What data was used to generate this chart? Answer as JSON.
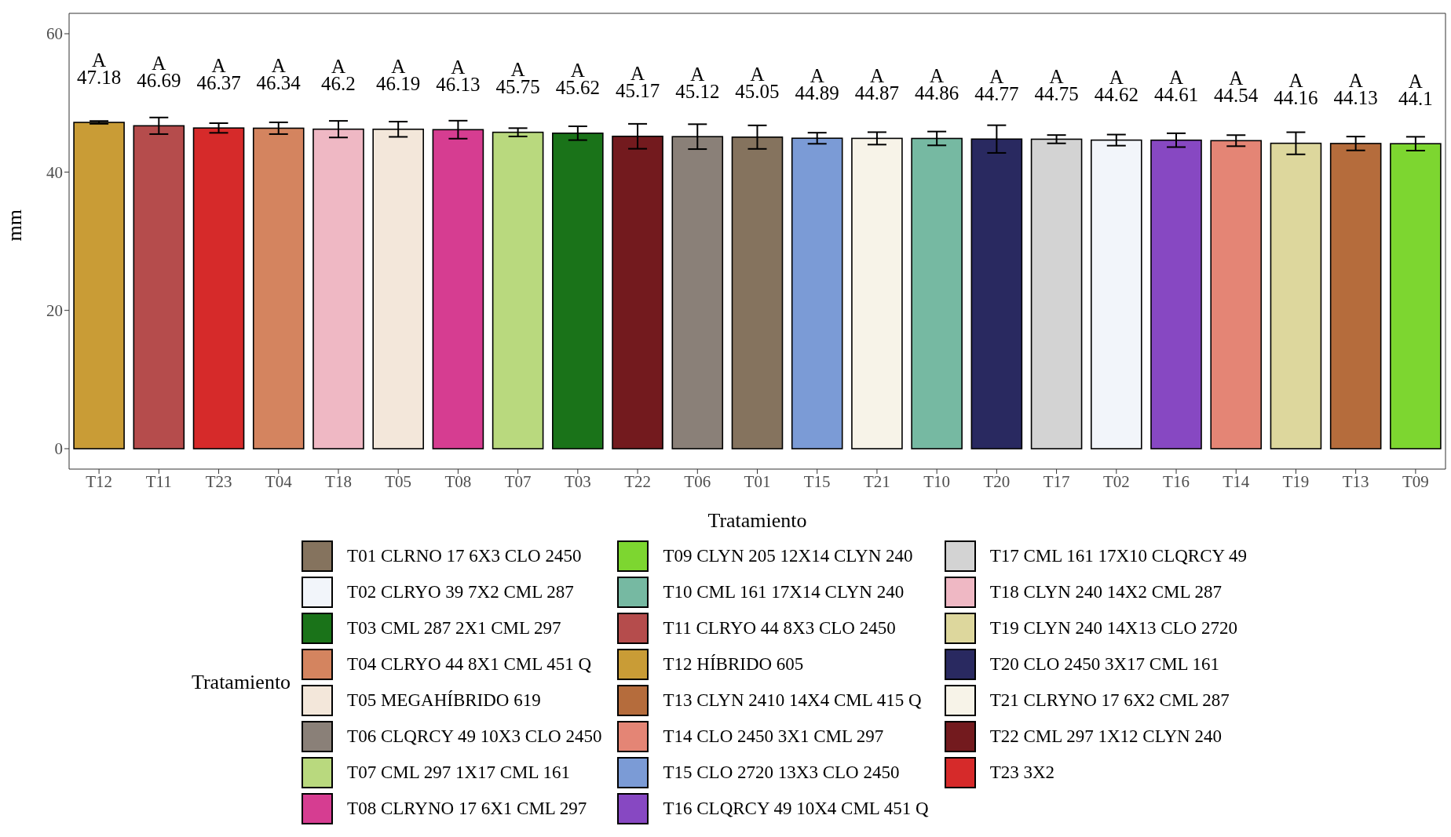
{
  "chart_data": {
    "type": "bar",
    "xlabel": "Tratamiento",
    "ylabel": "mm",
    "legend_title": "Tratamiento",
    "legend": "bottom",
    "stacked": true,
    "data_labels": true,
    "categories": [
      "T12",
      "T11",
      "T23",
      "T04",
      "T18",
      "T05",
      "T08",
      "T07",
      "T03",
      "T22",
      "T06",
      "T01",
      "T15",
      "T21",
      "T10",
      "T20",
      "T17",
      "T02",
      "T16",
      "T14",
      "T19",
      "T13",
      "T09"
    ],
    "ylim": [
      -2.95,
      62.95
    ],
    "yticks": [
      0,
      20,
      40,
      60
    ],
    "annotations": [
      {
        "text": "A",
        "x": "T12",
        "y": 47.18
      },
      {
        "text": "A",
        "x": "T11",
        "y": 46.69
      },
      {
        "text": "A",
        "x": "T23",
        "y": 46.37
      },
      {
        "text": "A",
        "x": "T04",
        "y": 46.34
      },
      {
        "text": "A",
        "x": "T18",
        "y": 46.2
      },
      {
        "text": "A",
        "x": "T05",
        "y": 46.19
      },
      {
        "text": "A",
        "x": "T08",
        "y": 46.13
      },
      {
        "text": "A",
        "x": "T07",
        "y": 45.75
      },
      {
        "text": "A",
        "x": "T03",
        "y": 45.62
      },
      {
        "text": "A",
        "x": "T22",
        "y": 45.17
      },
      {
        "text": "A",
        "x": "T06",
        "y": 45.12
      },
      {
        "text": "A",
        "x": "T01",
        "y": 45.05
      },
      {
        "text": "A",
        "x": "T15",
        "y": 44.89
      },
      {
        "text": "A",
        "x": "T21",
        "y": 44.87
      },
      {
        "text": "A",
        "x": "T10",
        "y": 44.86
      },
      {
        "text": "A",
        "x": "T20",
        "y": 44.77
      },
      {
        "text": "A",
        "x": "T17",
        "y": 44.75
      },
      {
        "text": "A",
        "x": "T02",
        "y": 44.62
      },
      {
        "text": "A",
        "x": "T16",
        "y": 44.61
      },
      {
        "text": "A",
        "x": "T14",
        "y": 44.54
      },
      {
        "text": "A",
        "x": "T19",
        "y": 44.16
      },
      {
        "text": "A",
        "x": "T13",
        "y": 44.13
      },
      {
        "text": "A",
        "x": "T09",
        "y": 44.1
      }
    ],
    "series": [
      {
        "name": "T01 CLRNO 17 6X3 CLO 2450",
        "color": "#85735e",
        "values": [
          null,
          null,
          null,
          null,
          null,
          null,
          null,
          null,
          null,
          null,
          null,
          45.05,
          null,
          null,
          null,
          null,
          null,
          null,
          null,
          null,
          null,
          null,
          null
        ],
        "errors": [
          null,
          null,
          null,
          null,
          null,
          null,
          null,
          null,
          null,
          null,
          null,
          1.7,
          null,
          null,
          null,
          null,
          null,
          null,
          null,
          null,
          null,
          null,
          null
        ]
      },
      {
        "name": "T02 CLRYO 39 7X2 CML 287",
        "color": "#f2f5fa",
        "values": [
          null,
          null,
          null,
          null,
          null,
          null,
          null,
          null,
          null,
          null,
          null,
          null,
          null,
          null,
          null,
          null,
          null,
          44.62,
          null,
          null,
          null,
          null,
          null
        ],
        "errors": [
          null,
          null,
          null,
          null,
          null,
          null,
          null,
          null,
          null,
          null,
          null,
          null,
          null,
          null,
          null,
          null,
          null,
          0.8,
          null,
          null,
          null,
          null,
          null
        ]
      },
      {
        "name": "T03 CML 287 2X1 CML 297",
        "color": "#1a7319",
        "values": [
          null,
          null,
          null,
          null,
          null,
          null,
          null,
          null,
          45.62,
          null,
          null,
          null,
          null,
          null,
          null,
          null,
          null,
          null,
          null,
          null,
          null,
          null,
          null
        ],
        "errors": [
          null,
          null,
          null,
          null,
          null,
          null,
          null,
          null,
          1.0,
          null,
          null,
          null,
          null,
          null,
          null,
          null,
          null,
          null,
          null,
          null,
          null,
          null,
          null
        ]
      },
      {
        "name": "T04 CLRYO 44 8X1 CML 451 Q",
        "color": "#d4845f",
        "values": [
          null,
          null,
          null,
          46.34,
          null,
          null,
          null,
          null,
          null,
          null,
          null,
          null,
          null,
          null,
          null,
          null,
          null,
          null,
          null,
          null,
          null,
          null,
          null
        ],
        "errors": [
          null,
          null,
          null,
          0.85,
          null,
          null,
          null,
          null,
          null,
          null,
          null,
          null,
          null,
          null,
          null,
          null,
          null,
          null,
          null,
          null,
          null,
          null,
          null
        ]
      },
      {
        "name": "T05 MEGAHÍBRIDO 619",
        "color": "#f3e7da",
        "values": [
          null,
          null,
          null,
          null,
          null,
          46.19,
          null,
          null,
          null,
          null,
          null,
          null,
          null,
          null,
          null,
          null,
          null,
          null,
          null,
          null,
          null,
          null,
          null
        ],
        "errors": [
          null,
          null,
          null,
          null,
          null,
          1.1,
          null,
          null,
          null,
          null,
          null,
          null,
          null,
          null,
          null,
          null,
          null,
          null,
          null,
          null,
          null,
          null,
          null
        ]
      },
      {
        "name": "T06 CLQRCY 49 10X3 CLO 2450",
        "color": "#8a8078",
        "values": [
          null,
          null,
          null,
          null,
          null,
          null,
          null,
          null,
          null,
          null,
          45.12,
          null,
          null,
          null,
          null,
          null,
          null,
          null,
          null,
          null,
          null,
          null,
          null
        ],
        "errors": [
          null,
          null,
          null,
          null,
          null,
          null,
          null,
          null,
          null,
          null,
          1.8,
          null,
          null,
          null,
          null,
          null,
          null,
          null,
          null,
          null,
          null,
          null,
          null
        ]
      },
      {
        "name": "T07 CML 297 1X17 CML 161",
        "color": "#b9d97e",
        "values": [
          null,
          null,
          null,
          null,
          null,
          null,
          null,
          45.75,
          null,
          null,
          null,
          null,
          null,
          null,
          null,
          null,
          null,
          null,
          null,
          null,
          null,
          null,
          null
        ],
        "errors": [
          null,
          null,
          null,
          null,
          null,
          null,
          null,
          0.6,
          null,
          null,
          null,
          null,
          null,
          null,
          null,
          null,
          null,
          null,
          null,
          null,
          null,
          null,
          null
        ]
      },
      {
        "name": "T08 CLRYNO 17 6X1 CML 297",
        "color": "#d63d91",
        "values": [
          null,
          null,
          null,
          null,
          null,
          null,
          46.13,
          null,
          null,
          null,
          null,
          null,
          null,
          null,
          null,
          null,
          null,
          null,
          null,
          null,
          null,
          null,
          null
        ],
        "errors": [
          null,
          null,
          null,
          null,
          null,
          null,
          1.3,
          null,
          null,
          null,
          null,
          null,
          null,
          null,
          null,
          null,
          null,
          null,
          null,
          null,
          null,
          null,
          null
        ]
      },
      {
        "name": "T09 CLYN 205 12X14 CLYN 240",
        "color": "#7dd630",
        "values": [
          null,
          null,
          null,
          null,
          null,
          null,
          null,
          null,
          null,
          null,
          null,
          null,
          null,
          null,
          null,
          null,
          null,
          null,
          null,
          null,
          null,
          null,
          44.1
        ],
        "errors": [
          null,
          null,
          null,
          null,
          null,
          null,
          null,
          null,
          null,
          null,
          null,
          null,
          null,
          null,
          null,
          null,
          null,
          null,
          null,
          null,
          null,
          null,
          1.0
        ]
      },
      {
        "name": "T10 CML 161 17X14 CLYN 240",
        "color": "#76b9a2",
        "values": [
          null,
          null,
          null,
          null,
          null,
          null,
          null,
          null,
          null,
          null,
          null,
          null,
          null,
          null,
          44.86,
          null,
          null,
          null,
          null,
          null,
          null,
          null,
          null
        ],
        "errors": [
          null,
          null,
          null,
          null,
          null,
          null,
          null,
          null,
          null,
          null,
          null,
          null,
          null,
          null,
          1.0,
          null,
          null,
          null,
          null,
          null,
          null,
          null,
          null
        ]
      },
      {
        "name": "T11 CLRYO 44 8X3 CLO 2450",
        "color": "#b54c4c",
        "values": [
          null,
          46.69,
          null,
          null,
          null,
          null,
          null,
          null,
          null,
          null,
          null,
          null,
          null,
          null,
          null,
          null,
          null,
          null,
          null,
          null,
          null,
          null,
          null
        ],
        "errors": [
          null,
          1.2,
          null,
          null,
          null,
          null,
          null,
          null,
          null,
          null,
          null,
          null,
          null,
          null,
          null,
          null,
          null,
          null,
          null,
          null,
          null,
          null,
          null
        ]
      },
      {
        "name": "T12 HÍBRIDO 605",
        "color": "#c99c36",
        "values": [
          47.18,
          null,
          null,
          null,
          null,
          null,
          null,
          null,
          null,
          null,
          null,
          null,
          null,
          null,
          null,
          null,
          null,
          null,
          null,
          null,
          null,
          null,
          null
        ],
        "errors": [
          0.2,
          null,
          null,
          null,
          null,
          null,
          null,
          null,
          null,
          null,
          null,
          null,
          null,
          null,
          null,
          null,
          null,
          null,
          null,
          null,
          null,
          null,
          null
        ]
      },
      {
        "name": "T13 CLYN 2410 14X4 CML 415 Q",
        "color": "#b56c3c",
        "values": [
          null,
          null,
          null,
          null,
          null,
          null,
          null,
          null,
          null,
          null,
          null,
          null,
          null,
          null,
          null,
          null,
          null,
          null,
          null,
          null,
          null,
          44.13,
          null
        ],
        "errors": [
          null,
          null,
          null,
          null,
          null,
          null,
          null,
          null,
          null,
          null,
          null,
          null,
          null,
          null,
          null,
          null,
          null,
          null,
          null,
          null,
          null,
          1.0,
          null
        ]
      },
      {
        "name": "T14 CLO 2450 3X1 CML 297",
        "color": "#e48575",
        "values": [
          null,
          null,
          null,
          null,
          null,
          null,
          null,
          null,
          null,
          null,
          null,
          null,
          null,
          null,
          null,
          null,
          null,
          null,
          null,
          44.54,
          null,
          null,
          null
        ],
        "errors": [
          null,
          null,
          null,
          null,
          null,
          null,
          null,
          null,
          null,
          null,
          null,
          null,
          null,
          null,
          null,
          null,
          null,
          null,
          null,
          0.8,
          null,
          null,
          null
        ]
      },
      {
        "name": "T15 CLO 2720 13X3 CLO 2450",
        "color": "#7b9bd6",
        "values": [
          null,
          null,
          null,
          null,
          null,
          null,
          null,
          null,
          null,
          null,
          null,
          null,
          44.89,
          null,
          null,
          null,
          null,
          null,
          null,
          null,
          null,
          null,
          null
        ],
        "errors": [
          null,
          null,
          null,
          null,
          null,
          null,
          null,
          null,
          null,
          null,
          null,
          null,
          0.8,
          null,
          null,
          null,
          null,
          null,
          null,
          null,
          null,
          null,
          null
        ]
      },
      {
        "name": "T16 CLQRCY 49 10X4 CML 451 Q",
        "color": "#8748c2",
        "values": [
          null,
          null,
          null,
          null,
          null,
          null,
          null,
          null,
          null,
          null,
          null,
          null,
          null,
          null,
          null,
          null,
          null,
          null,
          44.61,
          null,
          null,
          null,
          null
        ],
        "errors": [
          null,
          null,
          null,
          null,
          null,
          null,
          null,
          null,
          null,
          null,
          null,
          null,
          null,
          null,
          null,
          null,
          null,
          null,
          1.0,
          null,
          null,
          null,
          null
        ]
      },
      {
        "name": "T17 CML 161 17X10 CLQRCY 49",
        "color": "#d3d3d3",
        "values": [
          null,
          null,
          null,
          null,
          null,
          null,
          null,
          null,
          null,
          null,
          null,
          null,
          null,
          null,
          null,
          null,
          44.75,
          null,
          null,
          null,
          null,
          null,
          null
        ],
        "errors": [
          null,
          null,
          null,
          null,
          null,
          null,
          null,
          null,
          null,
          null,
          null,
          null,
          null,
          null,
          null,
          null,
          0.6,
          null,
          null,
          null,
          null,
          null,
          null
        ]
      },
      {
        "name": "T18 CLYN 240 14X2 CML 287",
        "color": "#efb8c4",
        "values": [
          null,
          null,
          null,
          null,
          46.2,
          null,
          null,
          null,
          null,
          null,
          null,
          null,
          null,
          null,
          null,
          null,
          null,
          null,
          null,
          null,
          null,
          null,
          null
        ],
        "errors": [
          null,
          null,
          null,
          null,
          1.2,
          null,
          null,
          null,
          null,
          null,
          null,
          null,
          null,
          null,
          null,
          null,
          null,
          null,
          null,
          null,
          null,
          null,
          null
        ]
      },
      {
        "name": "T19 CLYN 240 14X13 CLO 2720",
        "color": "#ddd79d",
        "values": [
          null,
          null,
          null,
          null,
          null,
          null,
          null,
          null,
          null,
          null,
          null,
          null,
          null,
          null,
          null,
          null,
          null,
          null,
          null,
          null,
          44.16,
          null,
          null
        ],
        "errors": [
          null,
          null,
          null,
          null,
          null,
          null,
          null,
          null,
          null,
          null,
          null,
          null,
          null,
          null,
          null,
          null,
          null,
          null,
          null,
          null,
          1.6,
          null,
          null
        ]
      },
      {
        "name": "T20 CLO 2450 3X17 CML 161",
        "color": "#292960",
        "values": [
          null,
          null,
          null,
          null,
          null,
          null,
          null,
          null,
          null,
          null,
          null,
          null,
          null,
          null,
          null,
          44.77,
          null,
          null,
          null,
          null,
          null,
          null,
          null
        ],
        "errors": [
          null,
          null,
          null,
          null,
          null,
          null,
          null,
          null,
          null,
          null,
          null,
          null,
          null,
          null,
          null,
          2.0,
          null,
          null,
          null,
          null,
          null,
          null,
          null
        ]
      },
      {
        "name": "T21 CLRYNO 17 6X2 CML 287",
        "color": "#f7f3e8",
        "values": [
          null,
          null,
          null,
          null,
          null,
          null,
          null,
          null,
          null,
          null,
          null,
          null,
          null,
          44.87,
          null,
          null,
          null,
          null,
          null,
          null,
          null,
          null,
          null
        ],
        "errors": [
          null,
          null,
          null,
          null,
          null,
          null,
          null,
          null,
          null,
          null,
          null,
          null,
          null,
          0.9,
          null,
          null,
          null,
          null,
          null,
          null,
          null,
          null,
          null
        ]
      },
      {
        "name": "T22 CML 297 1X12 CLYN 240",
        "color": "#731a1e",
        "values": [
          null,
          null,
          null,
          null,
          null,
          null,
          null,
          null,
          null,
          45.17,
          null,
          null,
          null,
          null,
          null,
          null,
          null,
          null,
          null,
          null,
          null,
          null,
          null
        ],
        "errors": [
          null,
          null,
          null,
          null,
          null,
          null,
          null,
          null,
          null,
          1.8,
          null,
          null,
          null,
          null,
          null,
          null,
          null,
          null,
          null,
          null,
          null,
          null,
          null
        ]
      },
      {
        "name": "T23 3X2",
        "color": "#d62a2a",
        "values": [
          null,
          null,
          46.37,
          null,
          null,
          null,
          null,
          null,
          null,
          null,
          null,
          null,
          null,
          null,
          null,
          null,
          null,
          null,
          null,
          null,
          null,
          null,
          null
        ],
        "errors": [
          null,
          null,
          0.7,
          null,
          null,
          null,
          null,
          null,
          null,
          null,
          null,
          null,
          null,
          null,
          null,
          null,
          null,
          null,
          null,
          null,
          null,
          null,
          null
        ]
      }
    ]
  }
}
